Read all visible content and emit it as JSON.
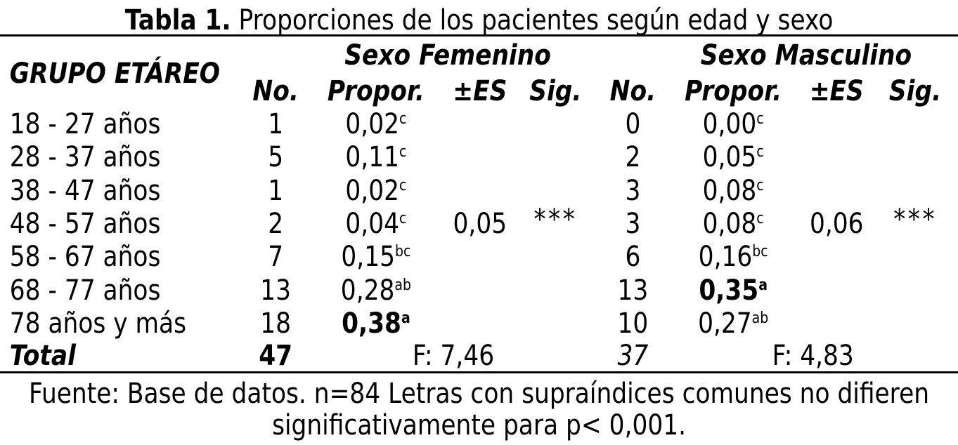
{
  "title": {
    "label": "Tabla 1.",
    "text": "Proporciones de los pacientes según edad y sexo"
  },
  "header": {
    "group_label": "GRUPO ETÁREO",
    "female": "Sexo Femenino",
    "male": "Sexo Masculino",
    "cols": [
      "No.",
      "Propor.",
      "±ES",
      "Sig.",
      "No.",
      "Propor.",
      "±ES",
      "Sig."
    ]
  },
  "rows": [
    {
      "group": "18 - 27 años",
      "f_no": "1",
      "f_prop": "0,02",
      "f_sup": "c",
      "f_bold": false,
      "m_no": "0",
      "m_prop": "0,00",
      "m_sup": "c",
      "m_bold": false
    },
    {
      "group": "28 - 37 años",
      "f_no": "5",
      "f_prop": "0,11",
      "f_sup": "c",
      "f_bold": false,
      "m_no": "2",
      "m_prop": "0,05",
      "m_sup": "c",
      "m_bold": false
    },
    {
      "group": "38 - 47 años",
      "f_no": "1",
      "f_prop": "0,02",
      "f_sup": "c",
      "f_bold": false,
      "m_no": "3",
      "m_prop": "0,08",
      "m_sup": "c",
      "m_bold": false
    },
    {
      "group": "48 - 57 años",
      "f_no": "2",
      "f_prop": "0,04",
      "f_sup": "c",
      "f_bold": false,
      "m_no": "3",
      "m_prop": "0,08",
      "m_sup": "c",
      "m_bold": false
    },
    {
      "group": "58 - 67 años",
      "f_no": "7",
      "f_prop": "0,15",
      "f_sup": "bc",
      "f_bold": false,
      "m_no": "6",
      "m_prop": "0,16",
      "m_sup": "bc",
      "m_bold": false
    },
    {
      "group": "68 - 77 años",
      "f_no": "13",
      "f_prop": "0,28",
      "f_sup": "ab",
      "f_bold": false,
      "m_no": "13",
      "m_prop": "0,35",
      "m_sup": "a",
      "m_bold": true
    },
    {
      "group": "78 años y más",
      "f_no": "18",
      "f_prop": "0,38",
      "f_sup": "a",
      "f_bold": true,
      "m_no": "10",
      "m_prop": "0,27",
      "m_sup": "ab",
      "m_bold": false
    }
  ],
  "stats": {
    "f_es": "0,05",
    "f_sig": "***",
    "m_es": "0,06",
    "m_sig": "***"
  },
  "total": {
    "label": "Total",
    "f_no": "47",
    "f_F": "F: 7,46",
    "m_no": "37",
    "m_F": "F: 4,83"
  },
  "footer": {
    "line1": "Fuente: Base de datos.  n=84 Letras con supraíndices comunes no difieren",
    "line2": "significativamente para p< 0,001."
  }
}
